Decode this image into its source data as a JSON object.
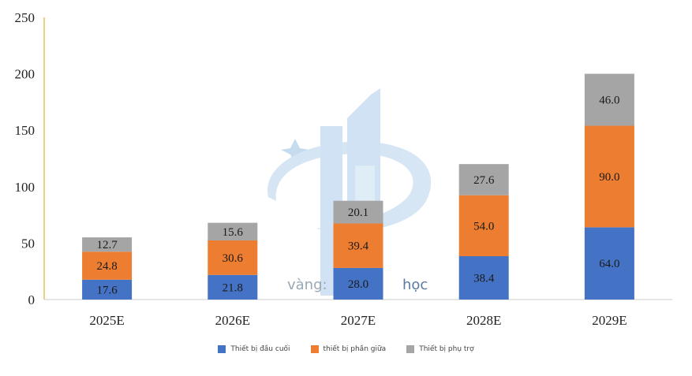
{
  "chart_data": {
    "type": "bar",
    "stacked": true,
    "categories": [
      "2025E",
      "2026E",
      "2027E",
      "2028E",
      "2029E"
    ],
    "series": [
      {
        "name": "Thiết bị đầu cuối",
        "color": "#4472c4",
        "values": [
          17.6,
          21.8,
          28.0,
          38.4,
          64.0
        ]
      },
      {
        "name": "thiết bị phần giữa",
        "color": "#ed7d31",
        "values": [
          24.8,
          30.6,
          39.4,
          54.0,
          90.0
        ]
      },
      {
        "name": "Thiết bị phụ trợ",
        "color": "#a5a5a5",
        "values": [
          12.7,
          15.6,
          20.1,
          27.6,
          46.0
        ]
      }
    ],
    "ylim": [
      0,
      250
    ],
    "yticks": [
      0,
      50,
      100,
      150,
      200,
      250
    ],
    "legend_position": "bottom",
    "grid": false
  },
  "watermark": {
    "left_text": "vàng:",
    "right_text": "học"
  }
}
